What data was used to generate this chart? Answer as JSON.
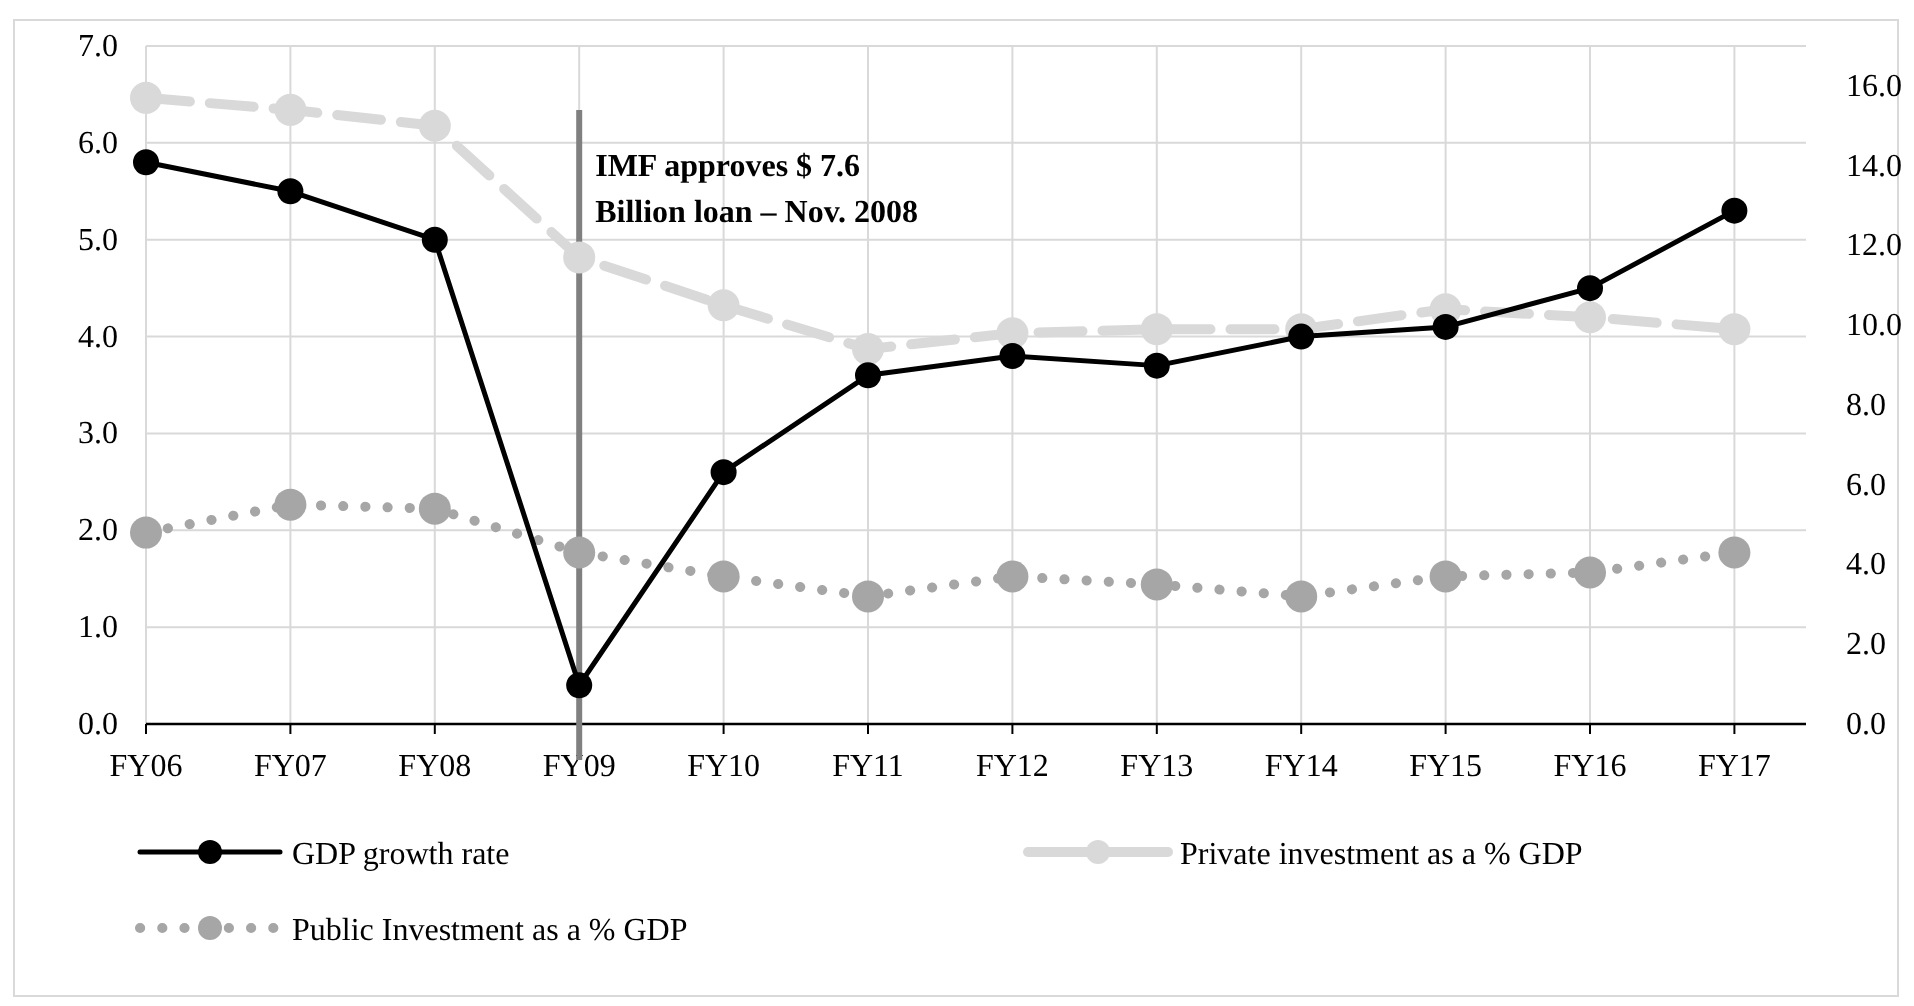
{
  "chart_data": {
    "type": "line",
    "categories": [
      "FY06",
      "FY07",
      "FY08",
      "FY09",
      "FY10",
      "FY11",
      "FY12",
      "FY13",
      "FY14",
      "FY15",
      "FY16",
      "FY17"
    ],
    "series": [
      {
        "name": "GDP growth rate",
        "color": "#000000",
        "line_style": "solid",
        "values": [
          5.8,
          5.5,
          5.0,
          0.4,
          2.6,
          3.6,
          3.8,
          3.7,
          4.0,
          4.1,
          4.5,
          5.3
        ]
      },
      {
        "name": "Private investment as a % GDP",
        "color": "#d9d9d9",
        "line_style": "dashed",
        "axis": "y2",
        "values": [
          15.7,
          15.4,
          15.0,
          11.7,
          10.5,
          9.4,
          9.8,
          9.9,
          9.9,
          10.4,
          10.2,
          9.9
        ]
      },
      {
        "name": "Public Investment as a % GDP",
        "color": "#a6a6a6",
        "line_style": "dotted",
        "axis": "y2",
        "values": [
          4.8,
          5.5,
          5.4,
          4.3,
          3.7,
          3.2,
          3.7,
          3.5,
          3.2,
          3.7,
          3.8,
          4.3
        ]
      }
    ],
    "ylim": [
      0,
      7
    ],
    "yticks": [
      {
        "value": 0,
        "label": "0.0"
      },
      {
        "value": 1,
        "label": "1.0"
      },
      {
        "value": 2,
        "label": "2.0"
      },
      {
        "value": 3,
        "label": "3.0"
      },
      {
        "value": 4,
        "label": "4.0"
      },
      {
        "value": 5,
        "label": "5.0"
      },
      {
        "value": 6,
        "label": "6.0"
      },
      {
        "value": 7,
        "label": "7.0"
      }
    ],
    "y2lim": [
      0,
      17
    ],
    "y2ticks": [
      {
        "value": 0,
        "label": "0.0"
      },
      {
        "value": 2,
        "label": "2.0"
      },
      {
        "value": 4,
        "label": "4.0"
      },
      {
        "value": 6,
        "label": "6.0"
      },
      {
        "value": 8,
        "label": "8.0"
      },
      {
        "value": 10,
        "label": "10.0"
      },
      {
        "value": 12,
        "label": "12.0"
      },
      {
        "value": 14,
        "label": "14.0"
      },
      {
        "value": 16,
        "label": "16.0"
      }
    ],
    "ref_lines": [
      {
        "axis": "x",
        "value": "FY09",
        "label": "IMF approves $ 7.6\nBillion loan – Nov. 2008",
        "color": "#808080"
      }
    ],
    "grid": true,
    "legend": "bottom",
    "marker": "circle"
  }
}
